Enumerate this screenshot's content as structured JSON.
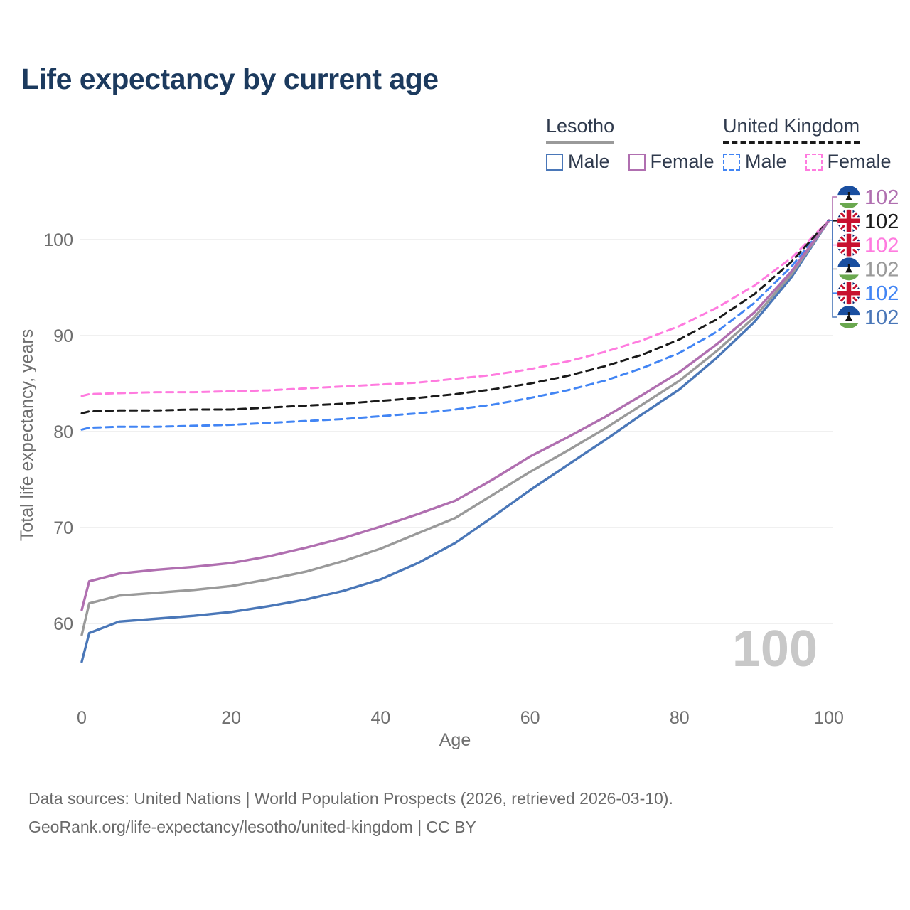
{
  "title": "Life expectancy by current age",
  "watermark": "100",
  "legend": {
    "groups": [
      {
        "title": "Lesotho",
        "line_style": "solid",
        "underline_color": "#9a9a9a",
        "items": [
          {
            "label": "Male",
            "color": "#4a77b8"
          },
          {
            "label": "Female",
            "color": "#b06fb0"
          }
        ]
      },
      {
        "title": "United Kingdom",
        "line_style": "dashed",
        "underline_color": "#1a1a1a",
        "items": [
          {
            "label": "Male",
            "color": "#4285f4"
          },
          {
            "label": "Female",
            "color": "#ff7bdf"
          }
        ]
      }
    ]
  },
  "colors": {
    "title": "#1c3a5e",
    "axis_text": "#6f6f6f",
    "grid": "#ebebeb",
    "watermark": "#c8c8c8",
    "footer": "#6a6a6a"
  },
  "chart_data": {
    "type": "line",
    "title": "Life expectancy by current age",
    "xlabel": "Age",
    "ylabel": "Total life expectancy, years",
    "x_ticks": [
      0,
      20,
      40,
      60,
      80,
      100
    ],
    "y_ticks": [
      60,
      70,
      80,
      90,
      100
    ],
    "xlim": [
      0,
      100
    ],
    "ylim": [
      55,
      103
    ],
    "grid": true,
    "legend_position": "top-right",
    "x": [
      0,
      1,
      5,
      10,
      15,
      20,
      25,
      30,
      35,
      40,
      45,
      50,
      55,
      60,
      65,
      70,
      75,
      80,
      85,
      90,
      95,
      100
    ],
    "series": [
      {
        "id": "lesotho_female",
        "name": "Lesotho Female",
        "flag": "lesotho",
        "color": "#b06fb0",
        "dash": false,
        "end_value": "102",
        "values": [
          61.4,
          64.4,
          65.2,
          65.6,
          65.9,
          66.3,
          67.0,
          67.9,
          68.9,
          70.1,
          71.4,
          72.8,
          75.0,
          77.4,
          79.4,
          81.5,
          83.8,
          86.2,
          89.1,
          92.4,
          96.7,
          102
        ]
      },
      {
        "id": "uk_total",
        "name": "United Kingdom",
        "flag": "uk",
        "color": "#1a1a1a",
        "dash": true,
        "end_value": "102",
        "values": [
          81.9,
          82.1,
          82.2,
          82.2,
          82.3,
          82.3,
          82.5,
          82.7,
          82.9,
          83.2,
          83.5,
          83.9,
          84.4,
          85.0,
          85.8,
          86.8,
          88.0,
          89.6,
          91.7,
          94.3,
          97.7,
          102
        ]
      },
      {
        "id": "uk_female",
        "name": "United Kingdom Female",
        "flag": "uk",
        "color": "#ff7bdf",
        "dash": true,
        "end_value": "102",
        "values": [
          83.7,
          83.9,
          84.0,
          84.1,
          84.1,
          84.2,
          84.3,
          84.5,
          84.7,
          84.9,
          85.1,
          85.5,
          85.9,
          86.5,
          87.3,
          88.3,
          89.5,
          91.0,
          92.9,
          95.2,
          98.1,
          102
        ]
      },
      {
        "id": "lesotho_total",
        "name": "Lesotho",
        "flag": "lesotho",
        "color": "#9a9a9a",
        "dash": false,
        "end_value": "102",
        "values": [
          58.8,
          62.1,
          62.9,
          63.2,
          63.5,
          63.9,
          64.6,
          65.4,
          66.5,
          67.8,
          69.4,
          71.0,
          73.4,
          75.8,
          78.0,
          80.3,
          82.8,
          85.3,
          88.4,
          91.9,
          96.4,
          102
        ]
      },
      {
        "id": "uk_male",
        "name": "United Kingdom Male",
        "flag": "uk",
        "color": "#4285f4",
        "dash": true,
        "end_value": "102",
        "values": [
          80.2,
          80.4,
          80.5,
          80.5,
          80.6,
          80.7,
          80.9,
          81.1,
          81.3,
          81.6,
          81.9,
          82.3,
          82.8,
          83.5,
          84.3,
          85.3,
          86.6,
          88.2,
          90.4,
          93.4,
          97.2,
          102
        ]
      },
      {
        "id": "lesotho_male",
        "name": "Lesotho Male",
        "flag": "lesotho",
        "color": "#4a77b8",
        "dash": false,
        "end_value": "102",
        "values": [
          56.0,
          59.0,
          60.2,
          60.5,
          60.8,
          61.2,
          61.8,
          62.5,
          63.4,
          64.6,
          66.3,
          68.4,
          71.1,
          73.9,
          76.5,
          79.1,
          81.8,
          84.4,
          87.7,
          91.4,
          96.1,
          102
        ]
      }
    ]
  },
  "footer": {
    "line1": "Data sources: United Nations | World Population Prospects (2026, retrieved 2026-03-10).",
    "line2": "GeoRank.org/life-expectancy/lesotho/united-kingdom | CC BY"
  }
}
